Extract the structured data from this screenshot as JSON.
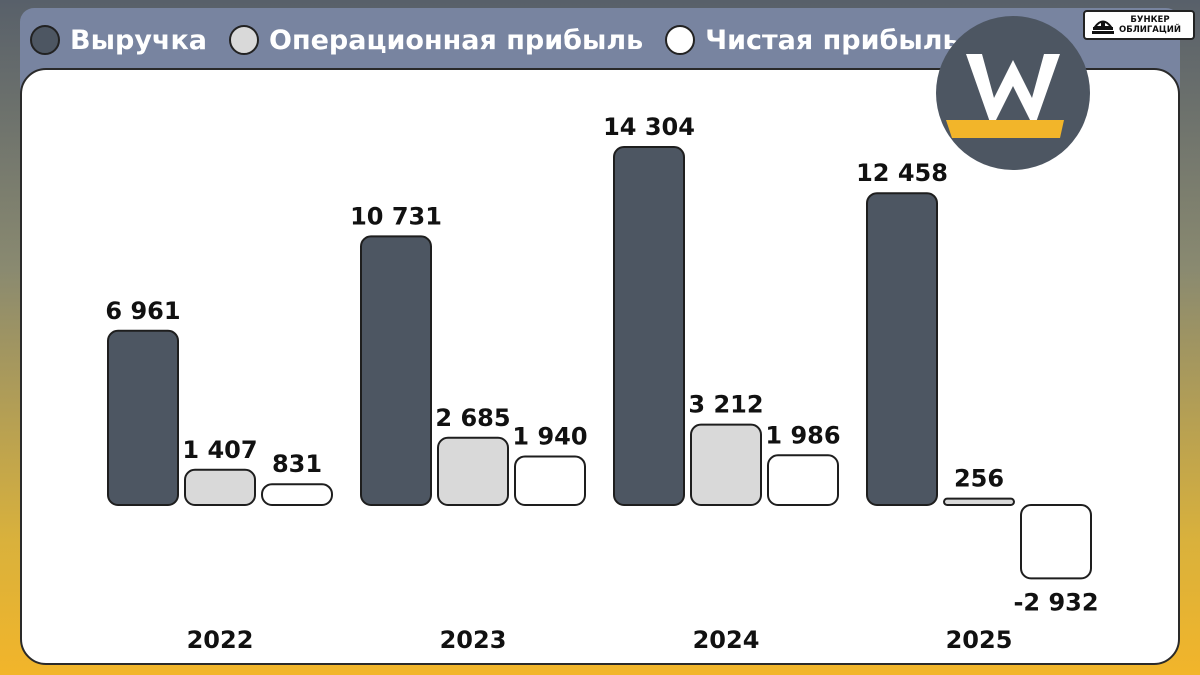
{
  "legend": [
    {
      "label": "Выручка",
      "color": "#4d5662"
    },
    {
      "label": "Операционная прибыль",
      "color": "#d9d9d9"
    },
    {
      "label": "Чистая прибыль",
      "color": "#ffffff"
    }
  ],
  "badge": {
    "line1": "БУНКЕР",
    "line2": "ОБЛИГАЦИЙ",
    "icon": "bunker-icon"
  },
  "logo": {
    "letter": "W",
    "bg_color": "#4d5662",
    "accent_color": "#f2b52a"
  },
  "chart_data": {
    "type": "bar",
    "categories": [
      "2022",
      "2023",
      "2024",
      "2025"
    ],
    "series": [
      {
        "name": "Выручка",
        "values": [
          6961,
          10731,
          14304,
          12458
        ],
        "labels": [
          "6 961",
          "10 731",
          "14 304",
          "12 458"
        ],
        "color": "#4d5662"
      },
      {
        "name": "Операционная прибыль",
        "values": [
          1407,
          2685,
          3212,
          256
        ],
        "labels": [
          "1 407",
          "2 685",
          "3 212",
          "256"
        ],
        "color": "#d9d9d9"
      },
      {
        "name": "Чистая прибыль",
        "values": [
          831,
          1940,
          1986,
          -2932
        ],
        "labels": [
          "831",
          "1 940",
          "1 986",
          "-2 932"
        ],
        "color": "#ffffff"
      }
    ],
    "grid": false,
    "legend_position": "top-left"
  }
}
